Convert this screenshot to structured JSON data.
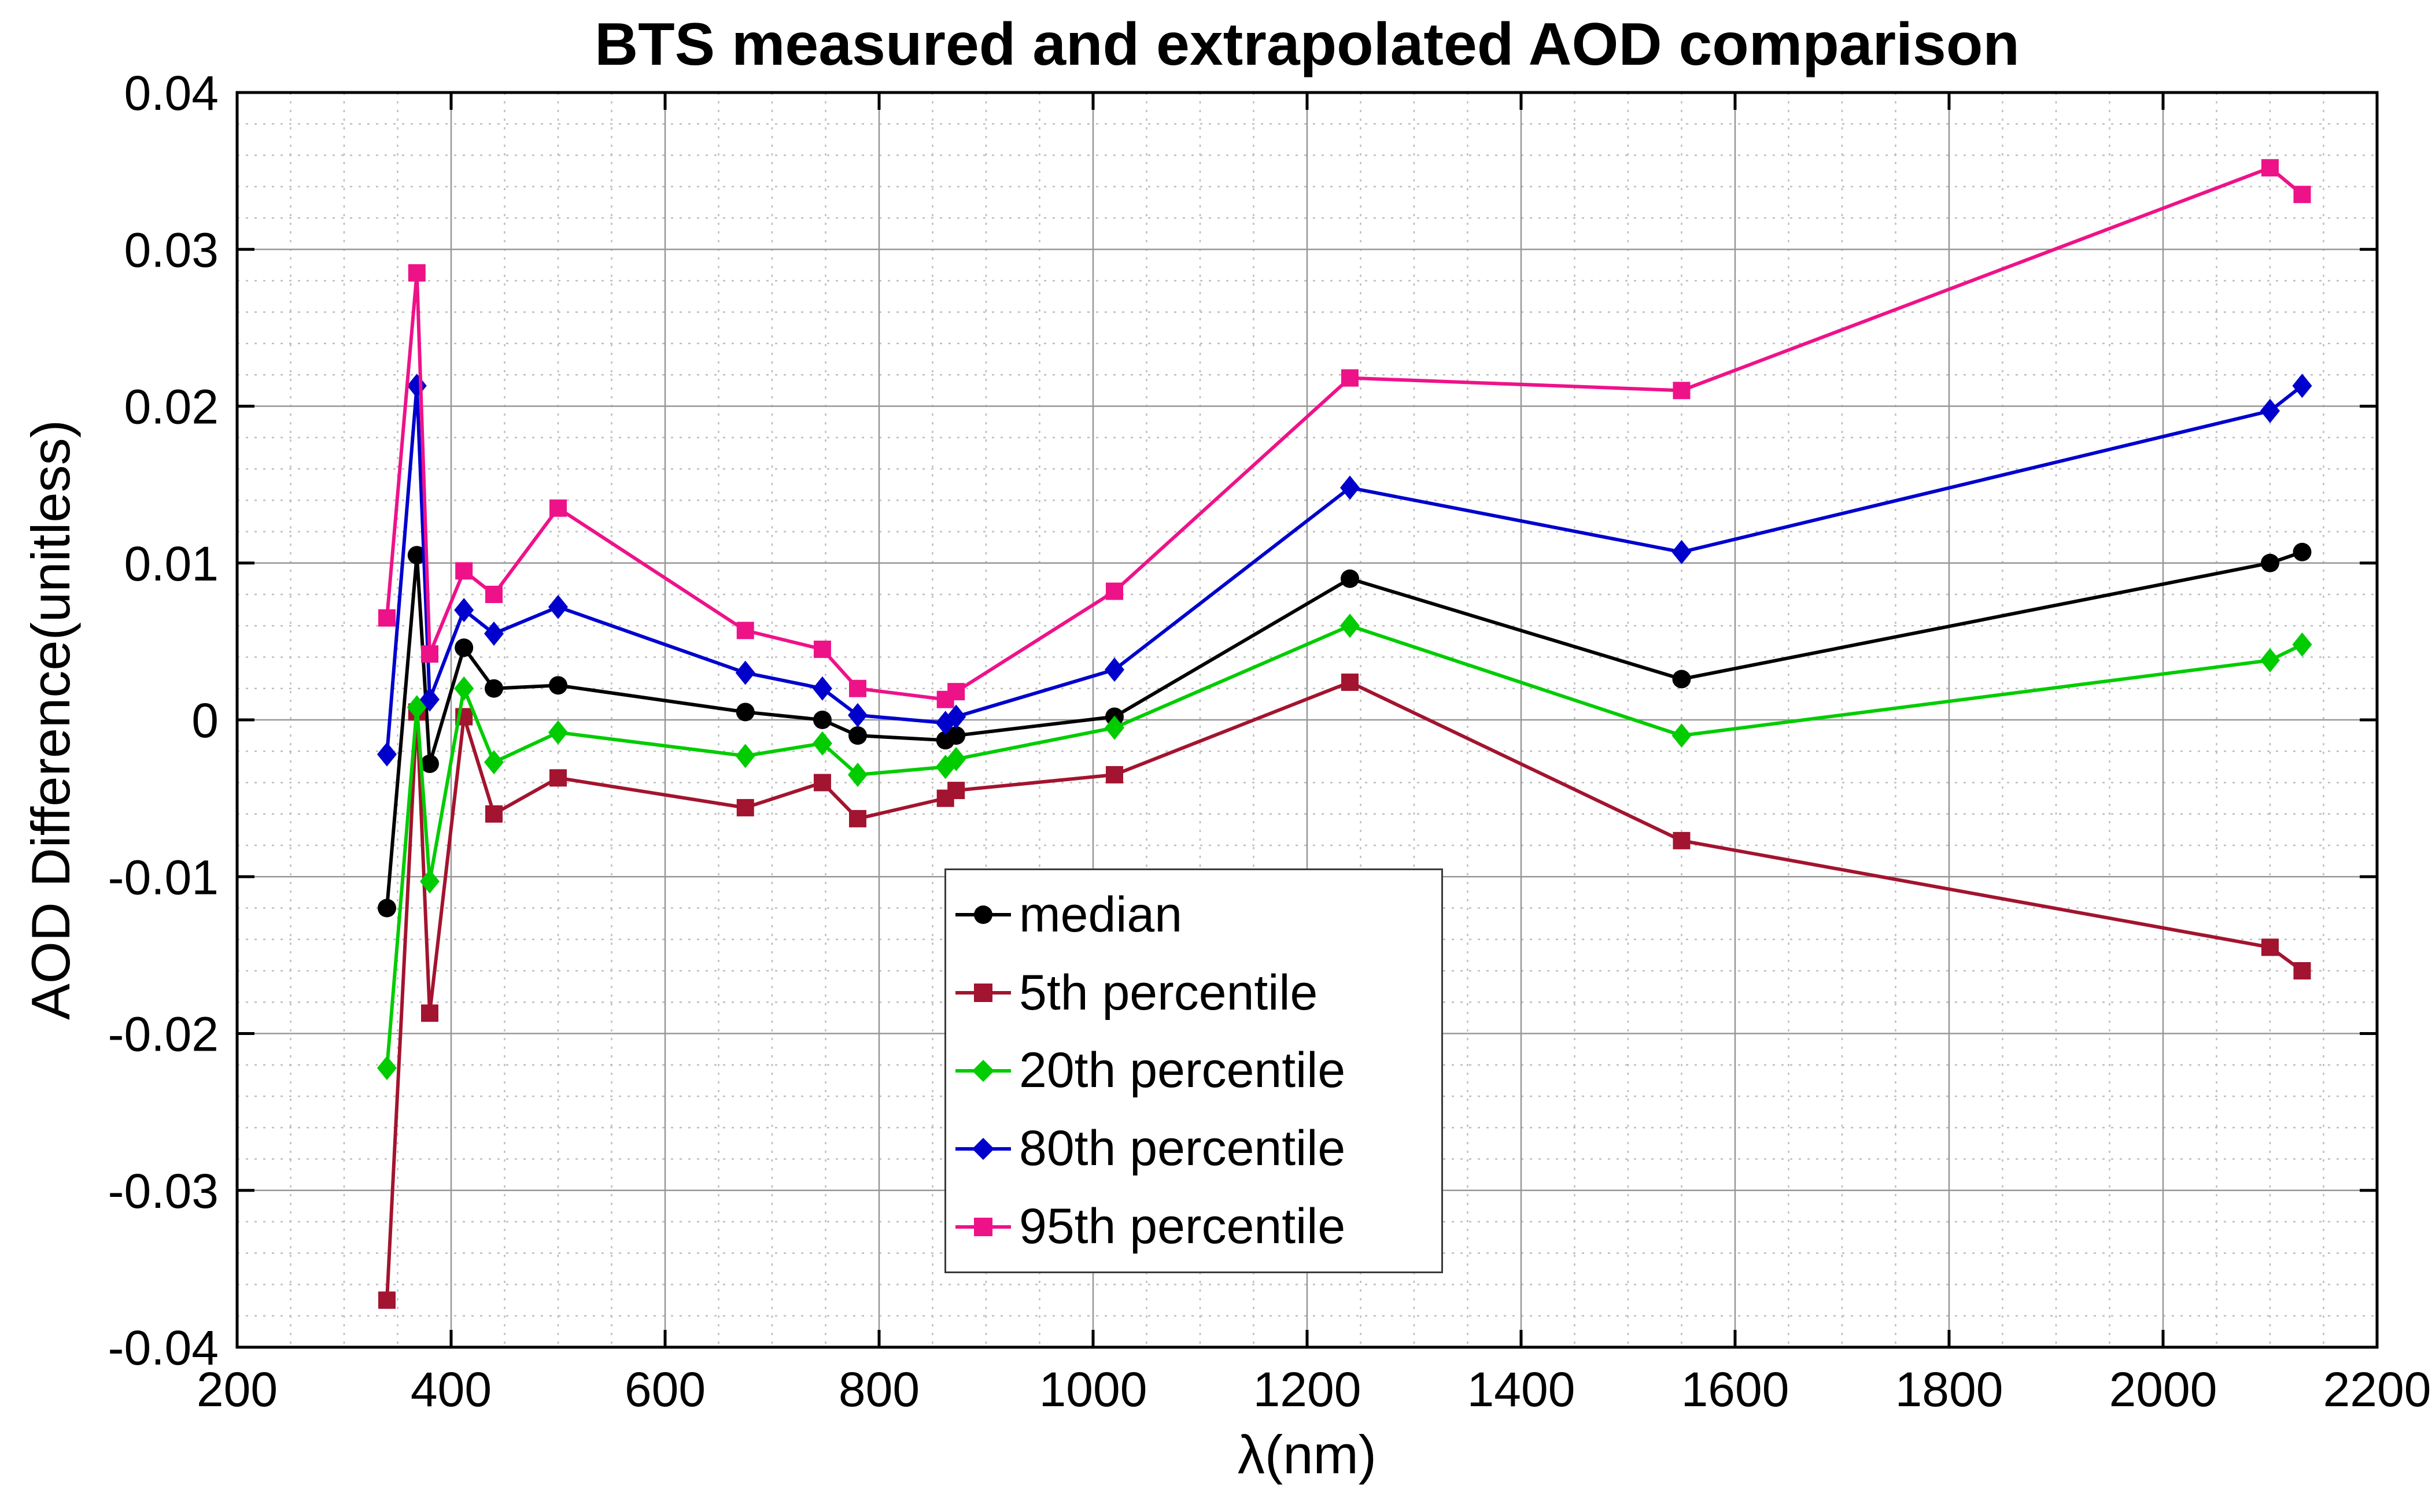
{
  "chart_data": {
    "type": "line",
    "title": "BTS measured and extrapolated AOD comparison",
    "xlabel": "λ(nm)",
    "ylabel": "AOD Difference(unitless)",
    "xlim": [
      200,
      2200
    ],
    "ylim": [
      -0.04,
      0.04
    ],
    "x_ticks": [
      200,
      400,
      600,
      800,
      1000,
      1200,
      1400,
      1600,
      1800,
      2000,
      2200
    ],
    "x_tick_labels": [
      "200",
      "400",
      "600",
      "800",
      "1000",
      "1200",
      "1400",
      "1600",
      "1800",
      "2000",
      "2200"
    ],
    "y_ticks": [
      -0.04,
      -0.03,
      -0.02,
      -0.01,
      0,
      0.01,
      0.02,
      0.03,
      0.04
    ],
    "y_tick_labels": [
      "-0.04",
      "-0.03",
      "-0.02",
      "-0.01",
      "0",
      "0.01",
      "0.02",
      "0.03",
      "0.04"
    ],
    "grid": {
      "major": true,
      "minor": true,
      "x_minor_step": 50,
      "y_minor_step": 0.002
    },
    "legend_position": "center",
    "x": [
      340,
      368,
      380,
      412,
      440,
      500,
      675,
      747,
      780,
      862,
      872,
      1020,
      1240,
      1550,
      2100,
      2130
    ],
    "series": [
      {
        "name": "median",
        "color": "#000000",
        "marker": "circle",
        "values": [
          -0.012,
          0.0105,
          -0.0028,
          0.0046,
          0.002,
          0.0022,
          0.0005,
          0.0,
          -0.001,
          -0.0013,
          -0.001,
          0.0002,
          0.009,
          0.0026,
          0.01,
          0.0107
        ]
      },
      {
        "name": "5th percentile",
        "color": "#A2142F",
        "marker": "square",
        "values": [
          -0.037,
          0.0005,
          -0.0187,
          0.0002,
          -0.006,
          -0.0037,
          -0.0056,
          -0.004,
          -0.0063,
          -0.005,
          -0.0045,
          -0.0035,
          0.0024,
          -0.0077,
          -0.0145,
          -0.016
        ]
      },
      {
        "name": "20th percentile",
        "color": "#00CC00",
        "marker": "diamond",
        "values": [
          -0.0222,
          0.0008,
          -0.0103,
          0.002,
          -0.0027,
          -0.0008,
          -0.0023,
          -0.0015,
          -0.0035,
          -0.003,
          -0.0025,
          -0.0005,
          0.006,
          -0.001,
          0.0038,
          0.0048
        ]
      },
      {
        "name": "80th percentile",
        "color": "#0000CD",
        "marker": "diamond",
        "values": [
          -0.0022,
          0.0213,
          0.0013,
          0.007,
          0.0055,
          0.0072,
          0.003,
          0.002,
          0.0003,
          -0.0002,
          0.0002,
          0.0032,
          0.0148,
          0.0107,
          0.0197,
          0.0213
        ]
      },
      {
        "name": "95th percentile",
        "color": "#EE1289",
        "marker": "square",
        "values": [
          0.0065,
          0.0285,
          0.0042,
          0.0095,
          0.008,
          0.0135,
          0.0057,
          0.0045,
          0.002,
          0.0013,
          0.0018,
          0.0082,
          0.0218,
          0.021,
          0.0352,
          0.0335
        ]
      }
    ]
  }
}
